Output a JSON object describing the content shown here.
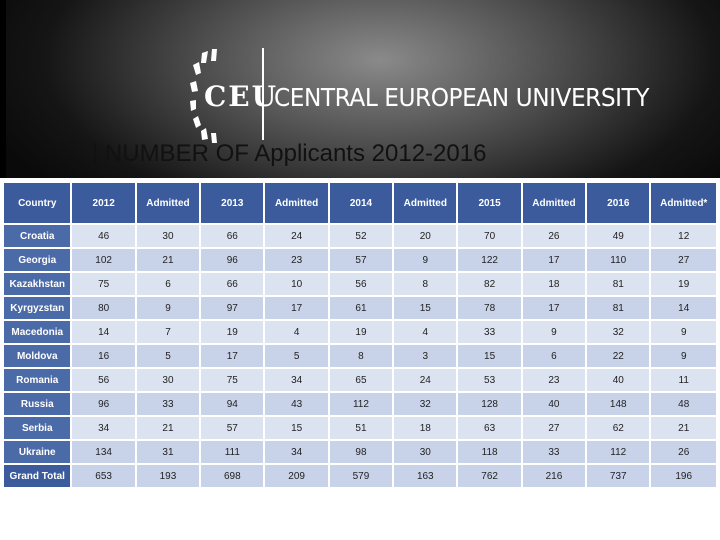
{
  "header": {
    "logo_letters": "CEU",
    "university_name": "CENTRAL EUROPEAN UNIVERSITY"
  },
  "slide": {
    "title": "| NUMBER OF Applicants 2012-2016"
  },
  "colors": {
    "header_fill": "#3b5b9c",
    "row_light": "#dbe2f0",
    "row_dark": "#c8d3ea"
  },
  "table": {
    "columns": [
      "Country",
      "2012",
      "Admitted",
      "2013",
      "Admitted",
      "2014",
      "Admitted",
      "2015",
      "Admitted",
      "2016",
      "Admitted*"
    ],
    "rows": [
      [
        "Croatia",
        "46",
        "30",
        "66",
        "24",
        "52",
        "20",
        "70",
        "26",
        "49",
        "12"
      ],
      [
        "Georgia",
        "102",
        "21",
        "96",
        "23",
        "57",
        "9",
        "122",
        "17",
        "110",
        "27"
      ],
      [
        "Kazakhstan",
        "75",
        "6",
        "66",
        "10",
        "56",
        "8",
        "82",
        "18",
        "81",
        "19"
      ],
      [
        "Kyrgyzstan",
        "80",
        "9",
        "97",
        "17",
        "61",
        "15",
        "78",
        "17",
        "81",
        "14"
      ],
      [
        "Macedonia",
        "14",
        "7",
        "19",
        "4",
        "19",
        "4",
        "33",
        "9",
        "32",
        "9"
      ],
      [
        "Moldova",
        "16",
        "5",
        "17",
        "5",
        "8",
        "3",
        "15",
        "6",
        "22",
        "9"
      ],
      [
        "Romania",
        "56",
        "30",
        "75",
        "34",
        "65",
        "24",
        "53",
        "23",
        "40",
        "11"
      ],
      [
        "Russia",
        "96",
        "33",
        "94",
        "43",
        "112",
        "32",
        "128",
        "40",
        "148",
        "48"
      ],
      [
        "Serbia",
        "34",
        "21",
        "57",
        "15",
        "51",
        "18",
        "63",
        "27",
        "62",
        "21"
      ],
      [
        "Ukraine",
        "134",
        "31",
        "111",
        "34",
        "98",
        "30",
        "118",
        "33",
        "112",
        "26"
      ],
      [
        "Grand Total",
        "653",
        "193",
        "698",
        "209",
        "579",
        "163",
        "762",
        "216",
        "737",
        "196"
      ]
    ]
  }
}
